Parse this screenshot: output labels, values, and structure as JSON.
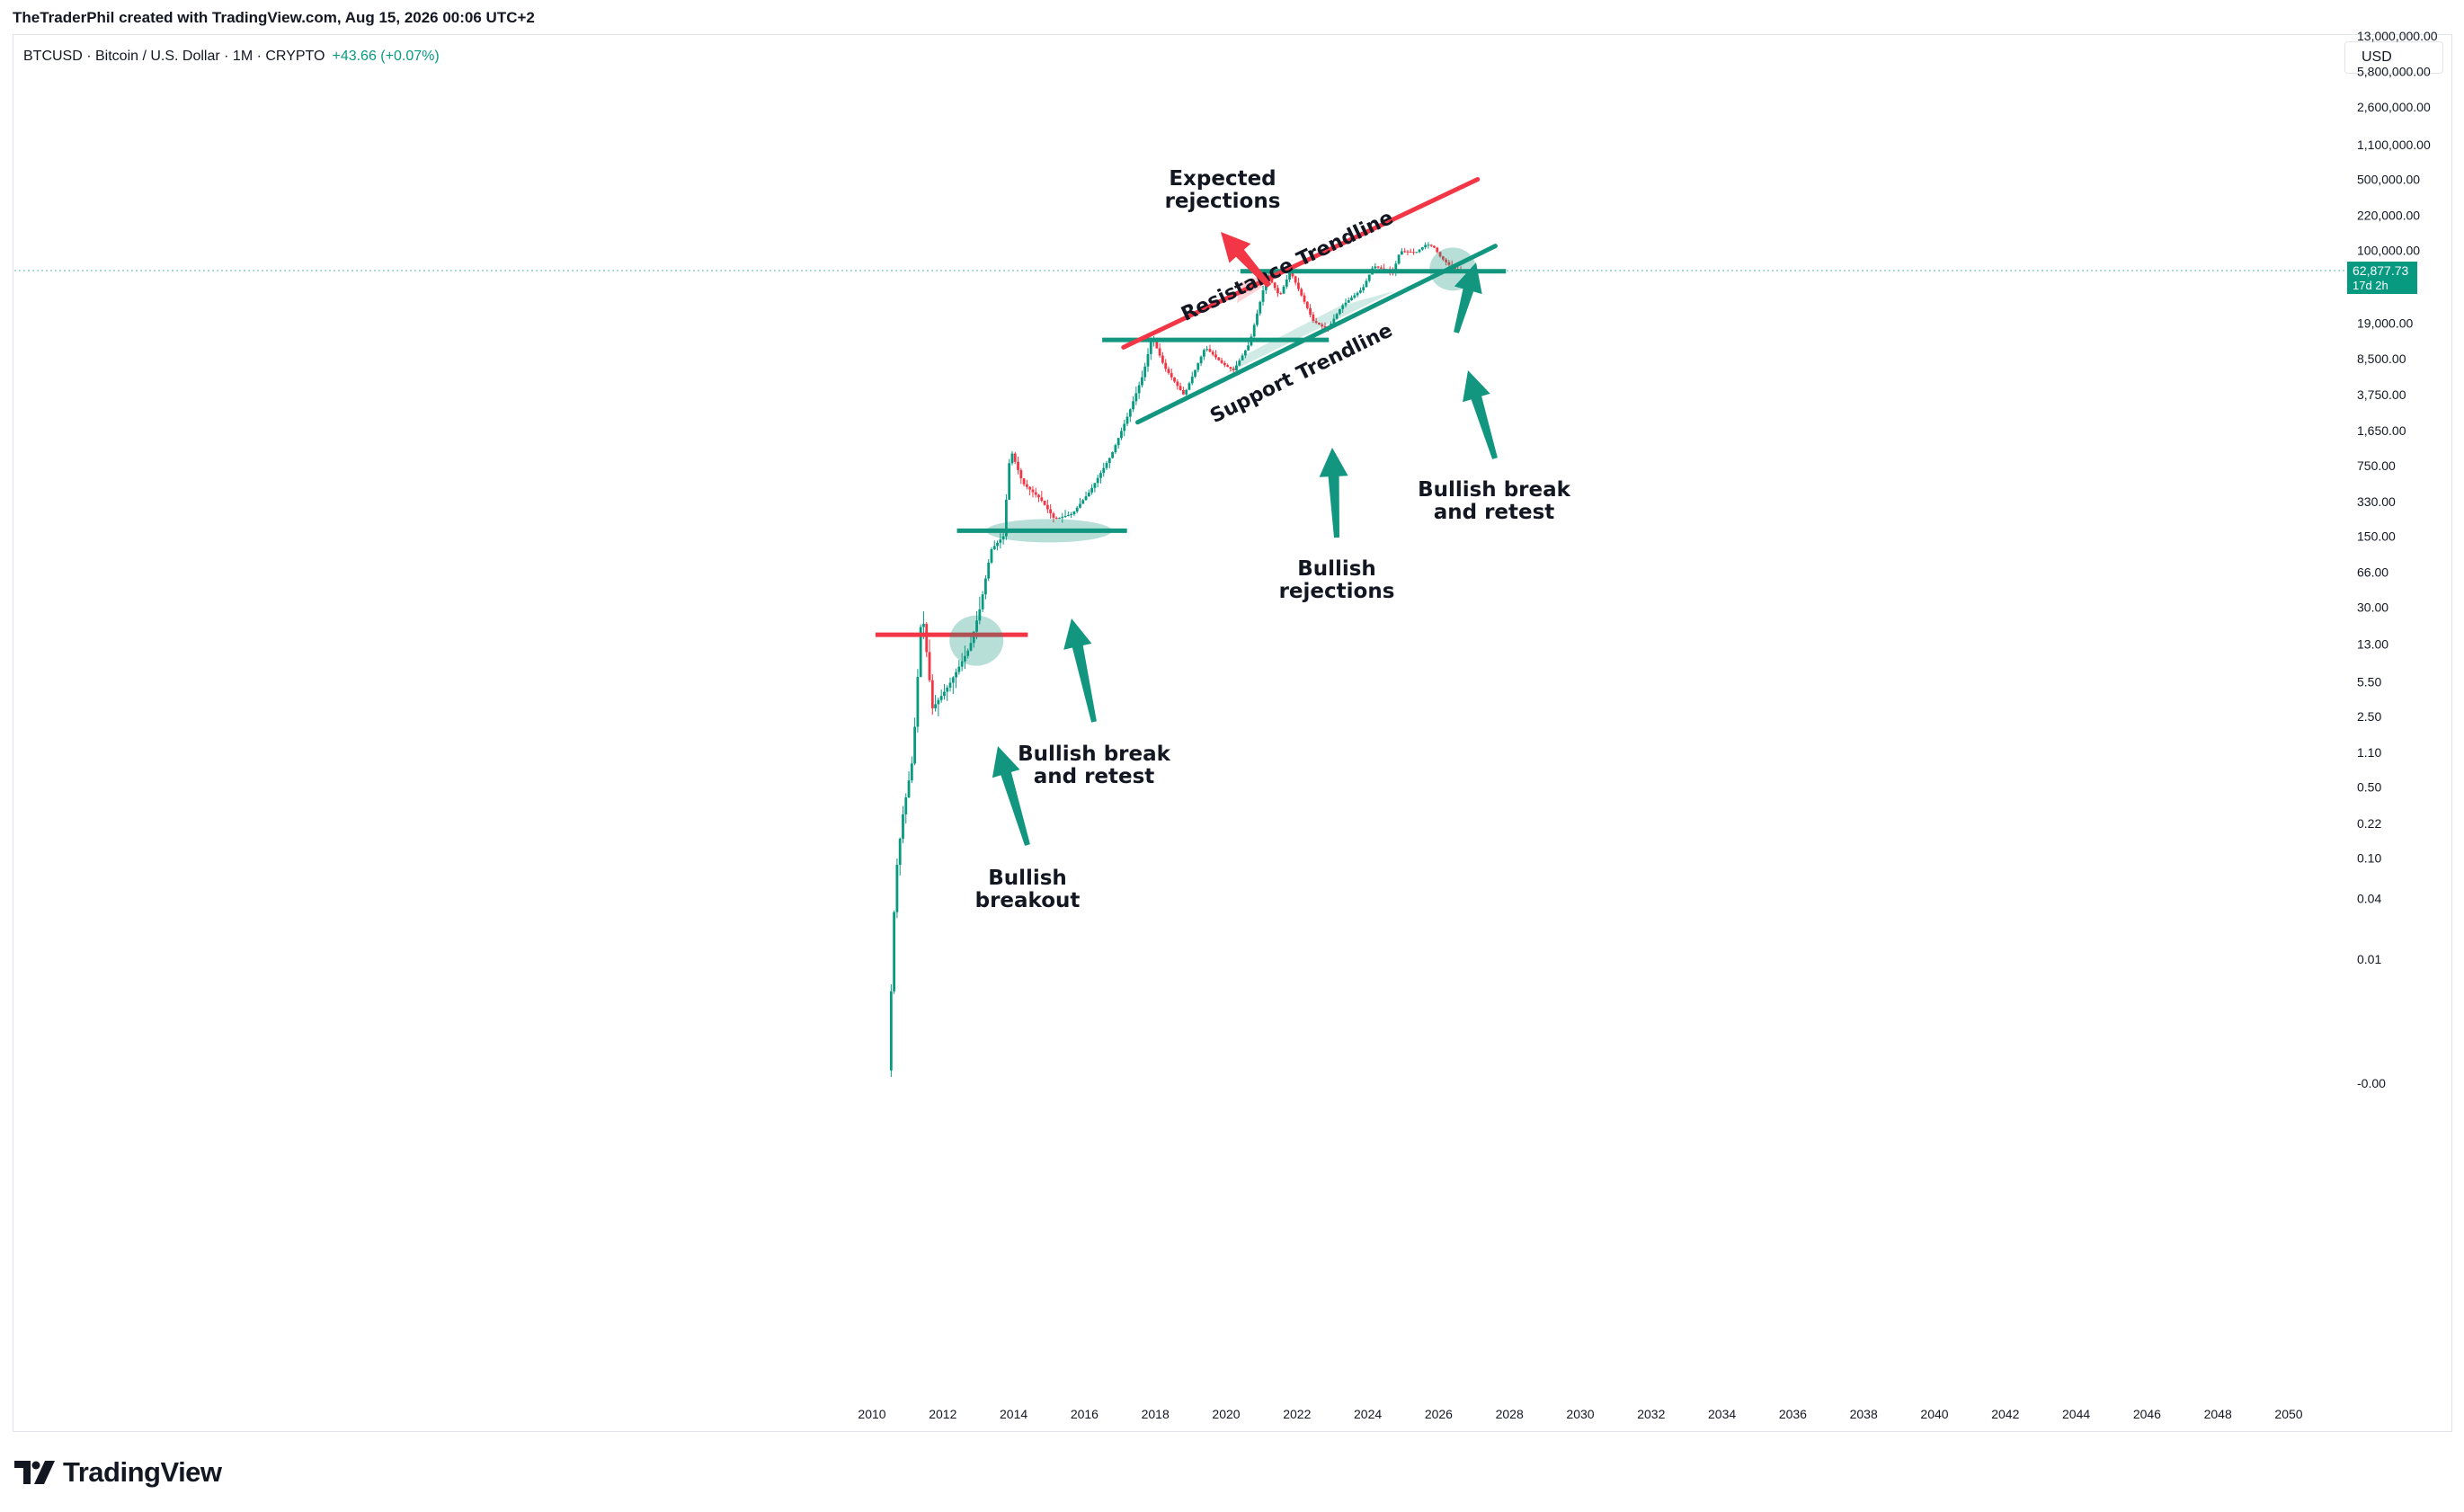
{
  "header": {
    "caption": "TheTraderPhil created with TradingView.com, Aug 15, 2026 00:06 UTC+2",
    "symbol": "BTCUSD · Bitcoin / U.S. Dollar · 1M · CRYPTO",
    "change": "+43.66 (+0.07%)",
    "currency": "USD"
  },
  "footer": {
    "logo_text": "TradingView",
    "logo_icon": "tradingview-logo-icon"
  },
  "colors": {
    "up": "#089981",
    "down": "#f23645",
    "support": "#12967f",
    "resistance": "#f23645",
    "price_tag": "#089981"
  },
  "price_tag": {
    "price": "62,877.73",
    "countdown": "17d 2h",
    "value": 62877.73
  },
  "chart_data": {
    "type": "candlestick",
    "scale": "log",
    "ylim": [
      0.0005,
      15000000
    ],
    "xlim": [
      2008.4,
      2051.5
    ],
    "grid": false,
    "y_ticks": [
      {
        "label": "13,000,000.00",
        "value": 13000000
      },
      {
        "label": "5,800,000.00",
        "value": 5800000
      },
      {
        "label": "2,600,000.00",
        "value": 2600000
      },
      {
        "label": "1,100,000.00",
        "value": 1100000
      },
      {
        "label": "500,000.00",
        "value": 500000
      },
      {
        "label": "220,000.00",
        "value": 220000
      },
      {
        "label": "100,000.00",
        "value": 100000
      },
      {
        "label": "19,000.00",
        "value": 19000
      },
      {
        "label": "8,500.00",
        "value": 8500
      },
      {
        "label": "3,750.00",
        "value": 3750
      },
      {
        "label": "1,650.00",
        "value": 1650
      },
      {
        "label": "750.00",
        "value": 750
      },
      {
        "label": "330.00",
        "value": 330
      },
      {
        "label": "150.00",
        "value": 150
      },
      {
        "label": "66.00",
        "value": 66
      },
      {
        "label": "30.00",
        "value": 30
      },
      {
        "label": "13.00",
        "value": 13
      },
      {
        "label": "5.50",
        "value": 5.5
      },
      {
        "label": "2.50",
        "value": 2.5
      },
      {
        "label": "1.10",
        "value": 1.1
      },
      {
        "label": "0.50",
        "value": 0.5
      },
      {
        "label": "0.22",
        "value": 0.22
      },
      {
        "label": "0.10",
        "value": 0.1
      },
      {
        "label": "0.04",
        "value": 0.04
      },
      {
        "label": "0.01",
        "value": 0.01
      },
      {
        "label": "-0.00",
        "value": 0.0006
      }
    ],
    "x_ticks": [
      "2010",
      "2012",
      "2014",
      "2016",
      "2018",
      "2020",
      "2022",
      "2024",
      "2026",
      "2028",
      "2030",
      "2032",
      "2034",
      "2036",
      "2038",
      "2040",
      "2042",
      "2044",
      "2046",
      "2048",
      "2050"
    ],
    "price_path": [
      [
        2010.5,
        0.0008
      ],
      [
        2010.7,
        0.06
      ],
      [
        2010.9,
        0.25
      ],
      [
        2011.2,
        1.0
      ],
      [
        2011.45,
        30
      ],
      [
        2011.75,
        3
      ],
      [
        2012.2,
        5
      ],
      [
        2012.8,
        12
      ],
      [
        2013.1,
        30
      ],
      [
        2013.4,
        110
      ],
      [
        2013.75,
        150
      ],
      [
        2013.95,
        1100
      ],
      [
        2014.3,
        500
      ],
      [
        2014.8,
        350
      ],
      [
        2015.2,
        220
      ],
      [
        2015.7,
        250
      ],
      [
        2016.2,
        420
      ],
      [
        2016.8,
        950
      ],
      [
        2017.3,
        2500
      ],
      [
        2017.7,
        6000
      ],
      [
        2017.95,
        14000
      ],
      [
        2018.3,
        7000
      ],
      [
        2018.85,
        3700
      ],
      [
        2019.45,
        11000
      ],
      [
        2019.95,
        7500
      ],
      [
        2020.25,
        6500
      ],
      [
        2020.7,
        12000
      ],
      [
        2021.2,
        58000
      ],
      [
        2021.55,
        35000
      ],
      [
        2021.85,
        62000
      ],
      [
        2022.5,
        20000
      ],
      [
        2022.9,
        16500
      ],
      [
        2023.3,
        28000
      ],
      [
        2023.9,
        42000
      ],
      [
        2024.2,
        70000
      ],
      [
        2024.75,
        60000
      ],
      [
        2024.95,
        98000
      ],
      [
        2025.4,
        95000
      ],
      [
        2025.7,
        115000
      ],
      [
        2025.9,
        108000
      ],
      [
        2026.1,
        85000
      ],
      [
        2026.4,
        68000
      ],
      [
        2026.6,
        62877
      ]
    ],
    "annotations": [
      {
        "text": [
          "Expected",
          "rejections"
        ],
        "role": "resistance"
      },
      {
        "text": [
          "Bullish break",
          "and retest"
        ],
        "role": "support"
      },
      {
        "text": [
          "Bullish",
          "rejections"
        ],
        "role": "support"
      },
      {
        "text": [
          "Bullish break",
          "and retest"
        ],
        "role": "support"
      },
      {
        "text": [
          "Bullish",
          "breakout"
        ],
        "role": "support"
      }
    ],
    "trendlines": [
      {
        "label": "Resistance Trendline",
        "kind": "resistance",
        "from": [
          2017.1,
          11000
        ],
        "to": [
          2027.1,
          500000
        ]
      },
      {
        "label": "Support Trendline",
        "kind": "support",
        "from": [
          2017.5,
          2000
        ],
        "to": [
          2027.6,
          110000
        ]
      }
    ],
    "levels": [
      {
        "kind": "resistance",
        "price": 16,
        "x_from": 2010.1,
        "x_to": 2014.4
      },
      {
        "kind": "support",
        "price": 170,
        "x_from": 2012.4,
        "x_to": 2017.2
      },
      {
        "kind": "support",
        "price": 13000,
        "x_from": 2016.5,
        "x_to": 2022.9
      },
      {
        "kind": "support",
        "price": 62000,
        "x_from": 2020.4,
        "x_to": 2027.9
      }
    ]
  }
}
